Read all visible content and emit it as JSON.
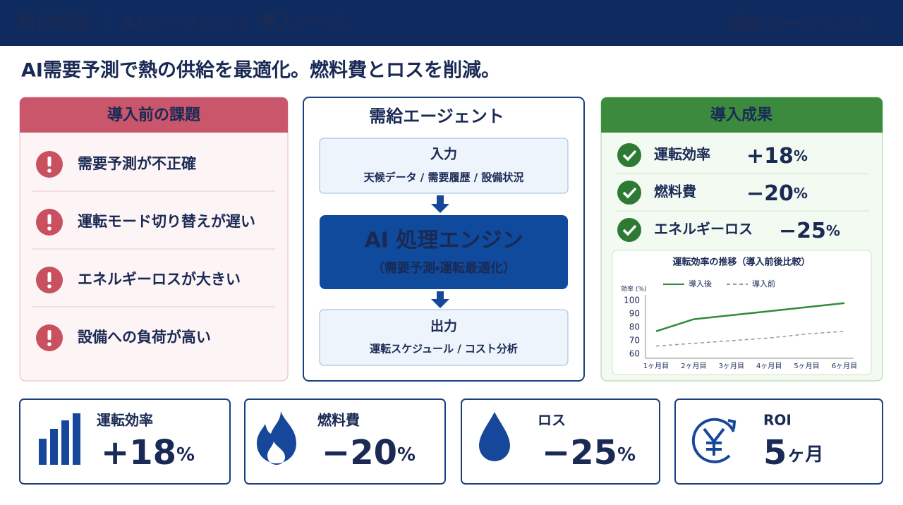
{
  "header": {
    "title": "熱供給業 ｜ AIエージェント 導入ケース",
    "brand": "需給エージェント"
  },
  "headline": "AI需要予測で熱の供給を最適化。燃料費とロスを削減。",
  "issues": {
    "title": "導入前の課題",
    "items": [
      "需要予測が不正確",
      "運転モード切り替えが遅い",
      "エネルギーロスが大きい",
      "設備への負荷が高い"
    ]
  },
  "agent": {
    "title": "需給エージェント",
    "input": {
      "title": "入力",
      "detail": "天候データ / 需要履歴 / 設備状況"
    },
    "engine": {
      "title": "AI 処理エンジン",
      "detail": "（需要予測・運転最適化）"
    },
    "output": {
      "title": "出力",
      "detail": "運転スケジュール / コスト分析"
    }
  },
  "results": {
    "title": "導入成果",
    "items": [
      {
        "label": "運転効率",
        "value": "+18",
        "unit": "%"
      },
      {
        "label": "燃料費",
        "value": "−20",
        "unit": "%"
      },
      {
        "label": "エネルギーロス",
        "value": "−25",
        "unit": "%"
      }
    ]
  },
  "chart_data": {
    "type": "line",
    "title": "運転効率の推移（導入前後比較）",
    "y_label": "効率 (%)",
    "categories": [
      "1ヶ月目",
      "2ヶ月目",
      "3ヶ月目",
      "4ヶ月目",
      "5ヶ月目",
      "6ヶ月目"
    ],
    "series": [
      {
        "name": "導入後",
        "color": "#2e8b3a",
        "dash": false,
        "values": [
          77,
          86,
          89,
          92,
          95,
          98
        ]
      },
      {
        "name": "導入前",
        "color": "#999999",
        "dash": true,
        "values": [
          66,
          68,
          70,
          72,
          75,
          77
        ]
      }
    ],
    "ylim": [
      60,
      100
    ],
    "yticks": [
      60,
      70,
      80,
      90,
      100
    ],
    "grid": false
  },
  "kpis": [
    {
      "label": "運転効率",
      "value": "+18",
      "unit": "%"
    },
    {
      "label": "燃料費",
      "value": "−20",
      "unit": "%"
    },
    {
      "label": "ロス",
      "value": "−25",
      "unit": "%"
    },
    {
      "label": "ROI",
      "value": "5",
      "unit": "ヶ月"
    }
  ]
}
